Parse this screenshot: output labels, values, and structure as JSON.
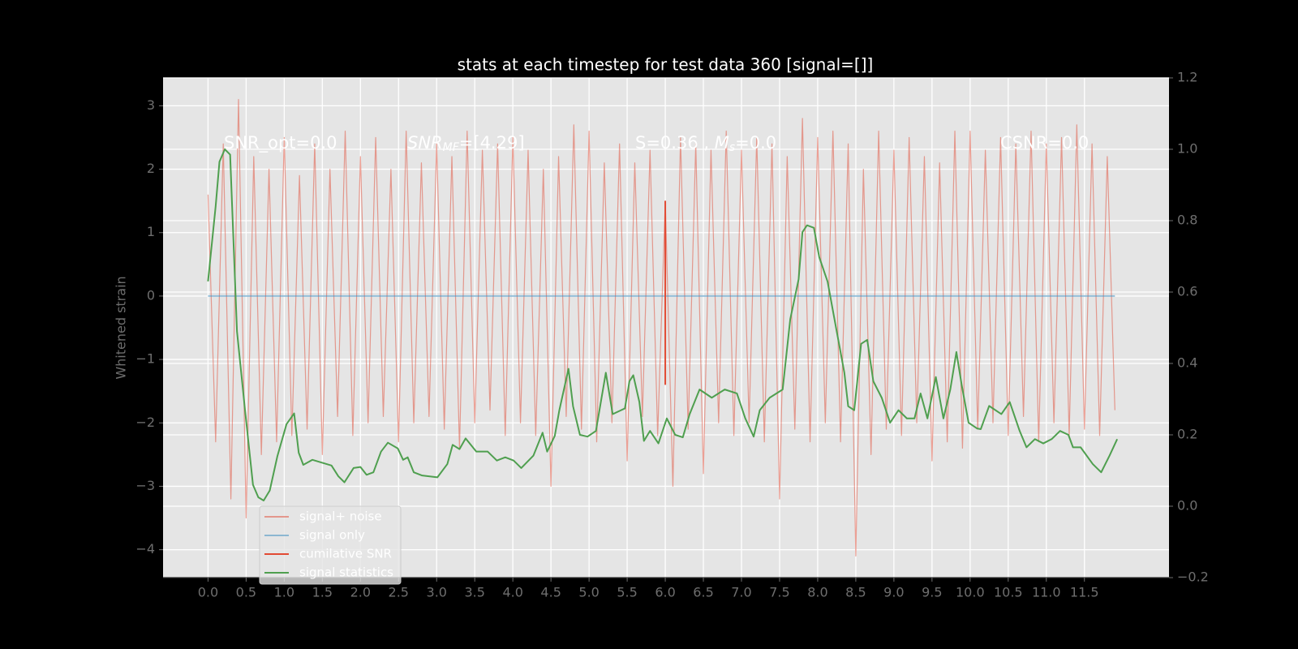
{
  "chart_data": {
    "type": "line",
    "title": "stats at each timestep for test data 360 [signal=[]]",
    "ylabel": "Whitened strain",
    "xlim": [
      -0.59,
      12.61
    ],
    "ylim": [
      -4.44,
      3.44
    ],
    "y2lim": [
      -0.2,
      1.2
    ],
    "xticks": [
      {
        "value": 0,
        "label": "0.0"
      },
      0.5,
      {
        "value": 1,
        "label": "1.0"
      },
      1.5,
      {
        "value": 2,
        "label": "2.0"
      },
      2.5,
      {
        "value": 3,
        "label": "3.0"
      },
      3.5,
      {
        "value": 4,
        "label": "4.0"
      },
      4.5,
      {
        "value": 5,
        "label": "5.0"
      },
      5.5,
      {
        "value": 6,
        "label": "6.0"
      },
      6.5,
      {
        "value": 7,
        "label": "7.0"
      },
      7.5,
      {
        "value": 8,
        "label": "8.0"
      },
      8.5,
      {
        "value": 9,
        "label": "9.0"
      },
      9.5,
      {
        "value": 10,
        "label": "10.0"
      },
      10.5,
      {
        "value": 11,
        "label": "11.0"
      },
      11.5
    ],
    "yticks": [
      {
        "value": -4,
        "label": "−4"
      },
      {
        "value": -3,
        "label": "−3"
      },
      {
        "value": -2,
        "label": "−2"
      },
      {
        "value": -1,
        "label": "−1"
      },
      0,
      1,
      2,
      3
    ],
    "y2ticks": [
      {
        "value": -0.2,
        "label": "−0.2"
      },
      {
        "value": 0,
        "label": "0.0"
      },
      0.2,
      0.4,
      0.6,
      0.8,
      {
        "value": 1,
        "label": "1.0"
      },
      1.2
    ],
    "grid": true,
    "legend": "lower left",
    "annotations": [
      [
        {
          "text": "SNR_opt=0.0"
        }
      ],
      [
        {
          "text": "SNR",
          "style": "italic"
        },
        {
          "text": "MF",
          "style": "sub"
        },
        {
          "text": "=[4.29]"
        }
      ],
      [
        {
          "text": "S=0.36 , "
        },
        {
          "text": "M",
          "style": "italic"
        },
        {
          "text": "s",
          "style": "sub"
        },
        {
          "text": "=0.0"
        }
      ],
      [
        {
          "text": "CSNR=0.0"
        }
      ]
    ],
    "series": [
      {
        "name": "signal+ noise",
        "color": "#E24A33",
        "alpha": 0.5,
        "x": [
          0.0,
          0.1,
          0.2,
          0.3,
          0.4,
          0.5,
          0.6,
          0.7,
          0.8,
          0.9,
          1.0,
          1.1,
          1.2,
          1.3,
          1.4,
          1.5,
          1.6,
          1.7,
          1.8,
          1.9,
          2.0,
          2.1,
          2.2,
          2.3,
          2.4,
          2.5,
          2.6,
          2.7,
          2.8,
          2.9,
          3.0,
          3.1,
          3.2,
          3.3,
          3.4,
          3.5,
          3.6,
          3.7,
          3.8,
          3.9,
          4.0,
          4.1,
          4.2,
          4.3,
          4.4,
          4.5,
          4.6,
          4.7,
          4.8,
          4.9,
          5.0,
          5.1,
          5.2,
          5.3,
          5.4,
          5.5,
          5.6,
          5.7,
          5.8,
          5.9,
          6.0,
          6.1,
          6.2,
          6.3,
          6.4,
          6.5,
          6.6,
          6.7,
          6.8,
          6.9,
          7.0,
          7.1,
          7.2,
          7.3,
          7.4,
          7.5,
          7.6,
          7.7,
          7.8,
          7.9,
          8.0,
          8.1,
          8.2,
          8.3,
          8.4,
          8.5,
          8.6,
          8.7,
          8.8,
          8.9,
          9.0,
          9.1,
          9.2,
          9.3,
          9.4,
          9.5,
          9.6,
          9.7,
          9.8,
          9.9,
          10.0,
          10.1,
          10.2,
          10.3,
          10.4,
          10.5,
          10.6,
          10.7,
          10.8,
          10.9,
          11.0,
          11.1,
          11.2,
          11.3,
          11.4,
          11.5,
          11.6,
          11.7,
          11.8,
          11.9
        ],
        "values": [
          1.6,
          -2.3,
          2.4,
          -3.2,
          3.1,
          -3.5,
          2.2,
          -2.5,
          2.0,
          -2.3,
          2.5,
          -2.2,
          1.9,
          -2.1,
          2.4,
          -2.5,
          2.0,
          -1.9,
          2.6,
          -2.2,
          2.2,
          -2.0,
          2.5,
          -1.9,
          2.0,
          -2.3,
          2.6,
          -2.0,
          2.1,
          -1.9,
          2.4,
          -2.1,
          2.2,
          -2.4,
          2.6,
          -2.0,
          2.3,
          -1.8,
          2.4,
          -2.2,
          2.5,
          -2.0,
          2.3,
          -2.2,
          2.0,
          -3.0,
          2.2,
          -1.9,
          2.7,
          -2.1,
          2.6,
          -2.3,
          2.1,
          -2.0,
          2.4,
          -2.6,
          2.1,
          -1.9,
          2.3,
          -2.2,
          1.5,
          -3.0,
          2.5,
          -2.1,
          2.4,
          -2.8,
          2.3,
          -2.0,
          2.6,
          -2.2,
          2.3,
          -2.0,
          2.5,
          -2.3,
          2.4,
          -3.2,
          2.2,
          -2.1,
          2.8,
          -2.3,
          2.5,
          -2.0,
          2.6,
          -2.3,
          2.4,
          -4.1,
          2.0,
          -2.5,
          2.6,
          -2.1,
          2.3,
          -2.2,
          2.5,
          -2.0,
          2.2,
          -2.6,
          2.1,
          -2.3,
          2.6,
          -2.4,
          2.6,
          -2.1,
          2.3,
          -2.0,
          2.5,
          -2.2,
          2.4,
          -1.9,
          2.6,
          -2.3,
          2.4,
          -2.0,
          2.5,
          -2.2,
          2.7,
          -2.1,
          2.4,
          -2.2,
          2.2,
          -1.8
        ]
      },
      {
        "name": "signal only",
        "color": "#348ABD",
        "alpha": 0.5,
        "x": [
          0.0,
          11.9
        ],
        "values": [
          0,
          0
        ]
      },
      {
        "name": "cumilative SNR",
        "color": "#E24A33",
        "alpha": 1,
        "x": [
          6.0,
          6.0
        ],
        "values": [
          -1.4,
          1.5
        ]
      },
      {
        "name": "signal statistics",
        "color": "#4f9f4f",
        "alpha": 1,
        "axis": "y2",
        "x": [
          0.0,
          0.1,
          0.15,
          0.22,
          0.29,
          0.38,
          0.49,
          0.59,
          0.66,
          0.73,
          0.81,
          0.91,
          1.03,
          1.13,
          1.19,
          1.25,
          1.37,
          1.62,
          1.71,
          1.79,
          1.91,
          2.0,
          2.08,
          2.17,
          2.27,
          2.36,
          2.49,
          2.56,
          2.62,
          2.7,
          2.81,
          3.01,
          3.14,
          3.21,
          3.3,
          3.38,
          3.52,
          3.67,
          3.79,
          3.9,
          4.01,
          4.11,
          4.27,
          4.39,
          4.45,
          4.55,
          4.61,
          4.73,
          4.79,
          4.88,
          4.98,
          5.09,
          5.22,
          5.31,
          5.47,
          5.53,
          5.58,
          5.66,
          5.72,
          5.8,
          5.91,
          6.02,
          6.13,
          6.23,
          6.32,
          6.45,
          6.61,
          6.78,
          6.94,
          7.05,
          7.16,
          7.24,
          7.37,
          7.54,
          7.64,
          7.75,
          7.8,
          7.86,
          7.95,
          8.02,
          8.13,
          8.24,
          8.35,
          8.4,
          8.48,
          8.57,
          8.65,
          8.73,
          8.84,
          8.95,
          9.06,
          9.17,
          9.27,
          9.35,
          9.44,
          9.55,
          9.65,
          9.74,
          9.82,
          9.89,
          9.98,
          10.09,
          10.14,
          10.25,
          10.41,
          10.52,
          10.65,
          10.74,
          10.85,
          10.96,
          11.07,
          11.18,
          11.29,
          11.35,
          11.45,
          11.61,
          11.72,
          11.83,
          11.93
        ],
        "values": [
          0.63,
          0.84,
          0.965,
          1.0,
          0.985,
          0.49,
          0.26,
          0.06,
          0.025,
          0.016,
          0.044,
          0.14,
          0.23,
          0.26,
          0.15,
          0.116,
          0.13,
          0.114,
          0.084,
          0.067,
          0.107,
          0.11,
          0.088,
          0.095,
          0.153,
          0.178,
          0.162,
          0.13,
          0.137,
          0.095,
          0.086,
          0.081,
          0.118,
          0.172,
          0.16,
          0.19,
          0.153,
          0.153,
          0.128,
          0.137,
          0.128,
          0.107,
          0.142,
          0.206,
          0.153,
          0.197,
          0.269,
          0.385,
          0.28,
          0.2,
          0.195,
          0.211,
          0.374,
          0.258,
          0.274,
          0.35,
          0.367,
          0.292,
          0.183,
          0.211,
          0.176,
          0.246,
          0.2,
          0.193,
          0.258,
          0.327,
          0.304,
          0.327,
          0.316,
          0.246,
          0.195,
          0.269,
          0.304,
          0.327,
          0.524,
          0.636,
          0.768,
          0.787,
          0.78,
          0.698,
          0.629,
          0.501,
          0.374,
          0.28,
          0.269,
          0.455,
          0.466,
          0.35,
          0.304,
          0.234,
          0.269,
          0.246,
          0.246,
          0.316,
          0.246,
          0.362,
          0.246,
          0.327,
          0.432,
          0.339,
          0.234,
          0.218,
          0.216,
          0.281,
          0.258,
          0.292,
          0.211,
          0.165,
          0.188,
          0.176,
          0.188,
          0.211,
          0.2,
          0.165,
          0.165,
          0.118,
          0.095,
          0.142,
          0.188
        ]
      }
    ]
  }
}
